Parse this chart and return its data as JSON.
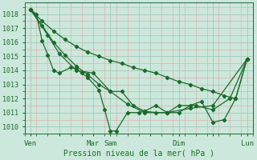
{
  "background_color": "#cce8dc",
  "grid_color_major": "#aaccbc",
  "grid_color_minor": "#c0ddd0",
  "line_color": "#1a6b2a",
  "xlabel": "Pression niveau de la mer( hPa )",
  "ylim": [
    1009.5,
    1018.8
  ],
  "yticks": [
    1010,
    1011,
    1012,
    1013,
    1014,
    1015,
    1016,
    1017,
    1018
  ],
  "xlim": [
    0,
    80
  ],
  "xtick_labels": [
    "Ven",
    "",
    "Mar",
    "Sam",
    "",
    "Dim",
    "",
    "Lun"
  ],
  "xtick_positions": [
    2,
    12,
    24,
    30,
    44,
    54,
    66,
    78
  ],
  "series": [
    {
      "x": [
        2,
        4,
        6,
        8,
        10,
        12,
        16,
        18,
        20,
        22,
        26,
        28,
        30,
        32,
        36,
        40,
        42,
        46,
        50,
        54,
        58,
        62,
        66,
        70,
        74,
        78
      ],
      "y": [
        1018.3,
        1018.0,
        1016.1,
        1015.1,
        1014.0,
        1013.8,
        1014.2,
        1014.1,
        1013.8,
        1013.5,
        1012.6,
        1011.2,
        1009.7,
        1009.7,
        1011.0,
        1011.0,
        1011.1,
        1011.5,
        1011.0,
        1011.0,
        1011.5,
        1011.8,
        1010.3,
        1010.5,
        1012.0,
        1014.8
      ]
    },
    {
      "x": [
        2,
        6,
        10,
        14,
        18,
        22,
        26,
        30,
        34,
        38,
        42,
        46,
        50,
        54,
        58,
        62,
        66,
        70,
        74,
        78
      ],
      "y": [
        1018.3,
        1017.5,
        1016.8,
        1016.2,
        1015.7,
        1015.3,
        1015.0,
        1014.7,
        1014.5,
        1014.2,
        1014.0,
        1013.8,
        1013.5,
        1013.2,
        1013.0,
        1012.7,
        1012.5,
        1012.2,
        1012.0,
        1014.8
      ]
    },
    {
      "x": [
        2,
        6,
        10,
        14,
        18,
        22,
        26,
        30,
        36,
        42,
        50,
        58,
        66,
        78
      ],
      "y": [
        1018.3,
        1017.2,
        1016.0,
        1015.1,
        1014.3,
        1013.7,
        1013.0,
        1012.5,
        1011.6,
        1011.0,
        1011.0,
        1011.3,
        1011.5,
        1014.8
      ]
    },
    {
      "x": [
        2,
        8,
        12,
        18,
        24,
        30,
        34,
        38,
        42,
        46,
        50,
        54,
        60,
        66,
        72,
        78
      ],
      "y": [
        1018.3,
        1016.5,
        1015.2,
        1014.0,
        1013.8,
        1012.5,
        1012.5,
        1011.5,
        1011.1,
        1011.0,
        1011.0,
        1011.5,
        1011.5,
        1011.2,
        1012.0,
        1014.8
      ]
    }
  ]
}
